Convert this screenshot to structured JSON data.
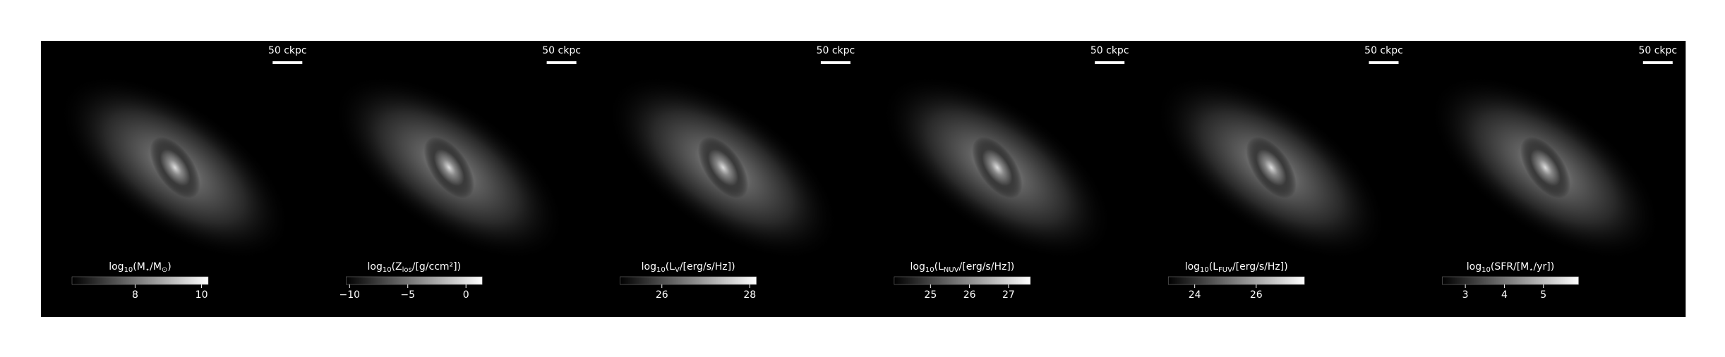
{
  "chart_data": [
    {
      "type": "image",
      "scale_bar": "50 ckpc",
      "label": [
        {
          "text": "log"
        },
        {
          "text": "10",
          "sub": true
        },
        {
          "text": "(M"
        },
        {
          "text": "⋆",
          "sub": true
        },
        {
          "text": "/M"
        },
        {
          "text": "⊙",
          "sub": true
        },
        {
          "text": ")"
        }
      ],
      "clim": [
        6.1,
        10.2
      ],
      "cticks": [
        8,
        10
      ]
    },
    {
      "type": "image",
      "scale_bar": "50 ckpc",
      "label": [
        {
          "text": "log"
        },
        {
          "text": "10",
          "sub": true
        },
        {
          "text": "(Z"
        },
        {
          "text": "los",
          "sub": true
        },
        {
          "text": "/[g/ccm²])"
        }
      ],
      "clim": [
        -10.3,
        1.4
      ],
      "cticks": [
        {
          "value": -10,
          "label": "−10"
        },
        {
          "value": -5,
          "label": "−5"
        },
        0
      ]
    },
    {
      "type": "image",
      "scale_bar": "50 ckpc",
      "label": [
        {
          "text": "log"
        },
        {
          "text": "10",
          "sub": true
        },
        {
          "text": "(L"
        },
        {
          "text": "V",
          "sub": true
        },
        {
          "text": "/[erg/s/Hz])"
        }
      ],
      "clim": [
        25.05,
        28.15
      ],
      "cticks": [
        26,
        28
      ]
    },
    {
      "type": "image",
      "scale_bar": "50 ckpc",
      "label": [
        {
          "text": "log"
        },
        {
          "text": "10",
          "sub": true
        },
        {
          "text": "(L"
        },
        {
          "text": "NUV",
          "sub": true
        },
        {
          "text": "/[erg/s/Hz])"
        }
      ],
      "clim": [
        24.07,
        27.56
      ],
      "cticks": [
        25,
        26,
        27
      ]
    },
    {
      "type": "image",
      "scale_bar": "50 ckpc",
      "label": [
        {
          "text": "log"
        },
        {
          "text": "10",
          "sub": true
        },
        {
          "text": "(L"
        },
        {
          "text": "FUV",
          "sub": true
        },
        {
          "text": "/[erg/s/Hz])"
        }
      ],
      "clim": [
        23.14,
        27.57
      ],
      "cticks": [
        24,
        26
      ]
    },
    {
      "type": "image",
      "scale_bar": "50 ckpc",
      "label": [
        {
          "text": "log"
        },
        {
          "text": "10",
          "sub": true
        },
        {
          "text": "(SFR/[M"
        },
        {
          "text": "⋆",
          "sub": true
        },
        {
          "text": "/yr])"
        }
      ],
      "clim": [
        2.41,
        5.9
      ],
      "cticks": [
        3,
        4,
        5
      ]
    }
  ]
}
